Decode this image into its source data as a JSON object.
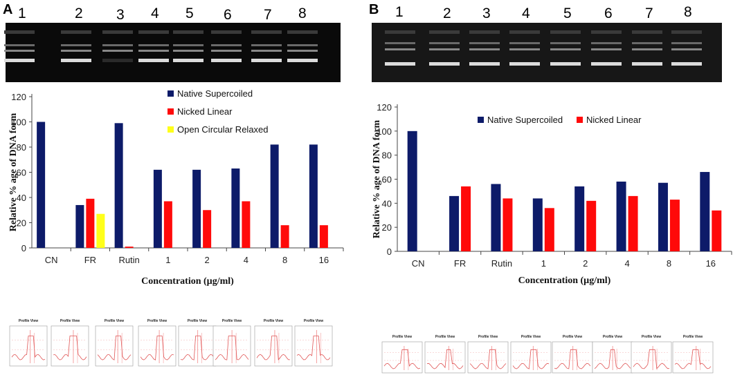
{
  "panels": [
    {
      "letter": "A",
      "lanes": [
        "1",
        "2",
        "3",
        "4",
        "5",
        "6",
        "7",
        "8"
      ]
    },
    {
      "letter": "B",
      "lanes": [
        "1",
        "2",
        "3",
        "4",
        "5",
        "6",
        "7",
        "8"
      ]
    }
  ],
  "profile_title": "Profile View",
  "chart_data": [
    {
      "type": "bar",
      "panel": "A",
      "categories": [
        "CN",
        "FR",
        "Rutin",
        "1",
        "2",
        "4",
        "8",
        "16"
      ],
      "series": [
        {
          "name": "Native Supercoiled",
          "color": "#0d1b69",
          "values": [
            100,
            34,
            99,
            62,
            62,
            63,
            82,
            82
          ]
        },
        {
          "name": "Nicked Linear",
          "color": "#ff0a0a",
          "values": [
            0,
            39,
            1,
            37,
            30,
            37,
            18,
            18
          ]
        },
        {
          "name": "Open Circular Relaxed",
          "color": "#ffff1a",
          "values": [
            0,
            27,
            0,
            0,
            0,
            0,
            0,
            0
          ]
        }
      ],
      "yticks": [
        "0",
        "20",
        "40",
        "60",
        "80",
        "100",
        "120"
      ],
      "ylim": [
        0,
        120
      ],
      "xlabel": "Concentration (µg/ml)",
      "ylabel": "Relative % age  of DNA form"
    },
    {
      "type": "bar",
      "panel": "B",
      "categories": [
        "CN",
        "FR",
        "Rutin",
        "1",
        "2",
        "4",
        "8",
        "16"
      ],
      "series": [
        {
          "name": "Native Supercoiled",
          "color": "#0d1b69",
          "values": [
            100,
            46,
            56,
            44,
            54,
            58,
            57,
            66
          ]
        },
        {
          "name": "Nicked Linear",
          "color": "#ff0a0a",
          "values": [
            0,
            54,
            44,
            36,
            42,
            46,
            43,
            34
          ]
        }
      ],
      "yticks": [
        "0",
        "20",
        "40",
        "60",
        "80",
        "100",
        "120"
      ],
      "ylim": [
        0,
        120
      ],
      "xlabel": "Concentration (µg/ml)",
      "ylabel": "Relative % age of DNA form"
    }
  ]
}
